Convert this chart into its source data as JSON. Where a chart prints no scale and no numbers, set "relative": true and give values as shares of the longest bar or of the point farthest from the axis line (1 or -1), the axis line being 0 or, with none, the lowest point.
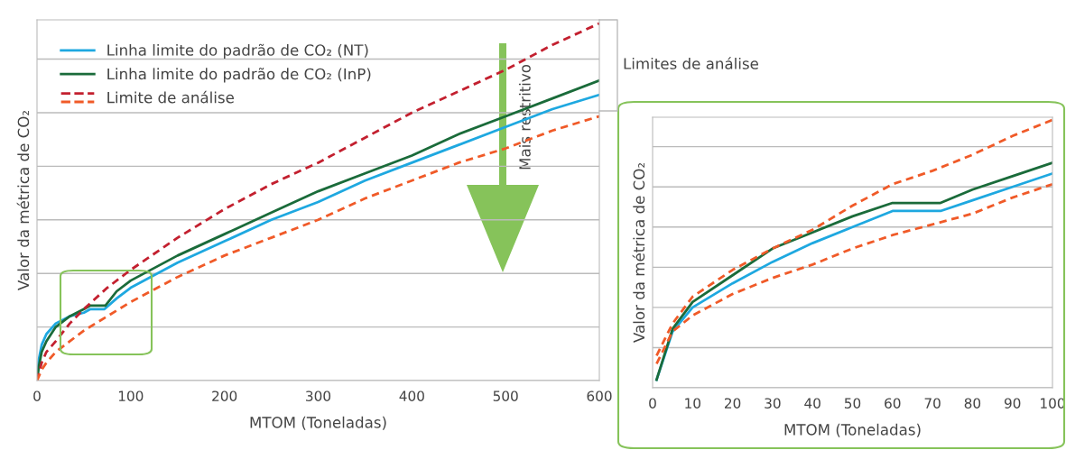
{
  "chart_data": [
    {
      "type": "line",
      "xlabel": "MTOM (Toneladas)",
      "ylabel": "Valor da métrica de CO₂",
      "relative": true,
      "xlim": [
        0,
        600
      ],
      "xticks": [
        0,
        100,
        200,
        300,
        400,
        500,
        600
      ],
      "tick_labels": "x",
      "grid": "y",
      "legend": "top left",
      "annotations": [
        "Mais restritivo",
        "Limites de análise"
      ],
      "series": [
        {
          "name": "Linha limite do padrão de CO₂ (NT)",
          "color": "#1ea8e0",
          "line_style": "solid",
          "x": [
            0,
            2,
            5,
            10,
            20,
            35,
            50,
            57,
            72,
            85,
            100,
            150,
            200,
            250,
            300,
            350,
            400,
            450,
            500,
            550,
            600
          ],
          "values": [
            0,
            0.06,
            0.1,
            0.13,
            0.16,
            0.18,
            0.19,
            0.2,
            0.2,
            0.23,
            0.26,
            0.33,
            0.39,
            0.45,
            0.5,
            0.56,
            0.61,
            0.66,
            0.71,
            0.76,
            0.8
          ]
        },
        {
          "name": "Linha limite do padrão de CO₂ (InP)",
          "color": "#1a6b3a",
          "line_style": "solid",
          "x": [
            1,
            2,
            5,
            10,
            20,
            35,
            50,
            57,
            73,
            85,
            100,
            150,
            200,
            250,
            300,
            350,
            400,
            450,
            500,
            550,
            600
          ],
          "values": [
            0.02,
            0.04,
            0.08,
            0.11,
            0.15,
            0.18,
            0.2,
            0.21,
            0.21,
            0.25,
            0.28,
            0.35,
            0.41,
            0.47,
            0.53,
            0.58,
            0.63,
            0.69,
            0.74,
            0.79,
            0.84
          ]
        },
        {
          "name": "Limite de análise",
          "color": "#c3202f",
          "line_style": "dashed",
          "x": [
            0,
            5,
            10,
            20,
            35,
            50,
            75,
            100,
            150,
            200,
            250,
            300,
            350,
            400,
            450,
            500,
            550,
            600
          ],
          "values": [
            0,
            0.05,
            0.08,
            0.11,
            0.16,
            0.2,
            0.26,
            0.31,
            0.4,
            0.48,
            0.55,
            0.61,
            0.68,
            0.75,
            0.81,
            0.87,
            0.94,
            1
          ]
        },
        {
          "color": "#f05a28",
          "line_style": "dashed",
          "x": [
            0,
            5,
            10,
            20,
            35,
            50,
            75,
            100,
            150,
            200,
            250,
            300,
            350,
            400,
            450,
            500,
            550,
            600
          ],
          "values": [
            0,
            0.03,
            0.05,
            0.08,
            0.11,
            0.14,
            0.18,
            0.22,
            0.29,
            0.35,
            0.4,
            0.45,
            0.51,
            0.56,
            0.61,
            0.65,
            0.7,
            0.74
          ]
        }
      ]
    },
    {
      "type": "line",
      "xlabel": "MTOM (Toneladas)",
      "ylabel": "Valor da métrica de CO₂",
      "relative": true,
      "xlim": [
        0,
        100
      ],
      "xticks": [
        0,
        10,
        20,
        30,
        40,
        50,
        60,
        70,
        80,
        90,
        100
      ],
      "tick_labels": "x",
      "grid": "y",
      "series": [
        {
          "color": "#1ea8e0",
          "line_style": "solid",
          "x": [
            1,
            5,
            10,
            20,
            30,
            40,
            50,
            60,
            72,
            80,
            90,
            100
          ],
          "values": [
            0.03,
            0.21,
            0.3,
            0.39,
            0.47,
            0.54,
            0.6,
            0.66,
            0.66,
            0.7,
            0.75,
            0.8
          ]
        },
        {
          "color": "#1a6b3a",
          "line_style": "solid",
          "x": [
            1,
            5,
            10,
            20,
            30,
            40,
            50,
            60,
            72,
            80,
            90,
            100
          ],
          "values": [
            0.03,
            0.22,
            0.32,
            0.42,
            0.52,
            0.58,
            0.64,
            0.69,
            0.69,
            0.74,
            0.79,
            0.84
          ]
        },
        {
          "color": "#f05a28",
          "line_style": "dashed",
          "x": [
            1,
            5,
            10,
            20,
            30,
            40,
            50,
            60,
            70,
            80,
            90,
            100
          ],
          "values": [
            0.12,
            0.24,
            0.34,
            0.44,
            0.52,
            0.59,
            0.68,
            0.76,
            0.81,
            0.87,
            0.94,
            1
          ]
        },
        {
          "color": "#f05a28",
          "line_style": "dashed",
          "x": [
            1,
            5,
            10,
            20,
            30,
            40,
            50,
            60,
            70,
            80,
            90,
            100
          ],
          "values": [
            0.09,
            0.21,
            0.27,
            0.35,
            0.41,
            0.46,
            0.52,
            0.57,
            0.61,
            0.65,
            0.71,
            0.76
          ]
        }
      ]
    }
  ]
}
